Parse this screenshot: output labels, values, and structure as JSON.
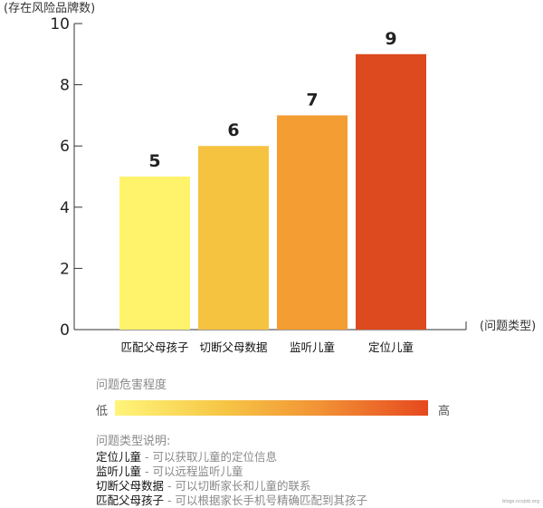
{
  "chart_data": {
    "type": "bar",
    "ylabel": "(存在风险品牌数)",
    "xlabel": "(问题类型)",
    "ylim": [
      0,
      10
    ],
    "yticks": [
      0,
      2,
      4,
      6,
      8,
      10
    ],
    "categories": [
      "匹配父母孩子",
      "切断父母数据",
      "监听儿童",
      "定位儿童"
    ],
    "values": [
      5,
      6,
      7,
      9
    ],
    "colors": [
      "#fff36b",
      "#f6c341",
      "#f39d33",
      "#de4a1f"
    ],
    "grid": false
  },
  "legend": {
    "title": "问题危害程度",
    "low": "低",
    "high": "高"
  },
  "description": {
    "title": "问题类型说明:",
    "items": [
      {
        "name": "定位儿童",
        "text": " - 可以获取儿童的定位信息"
      },
      {
        "name": "监听儿童",
        "text": " - 可以远程监听儿童"
      },
      {
        "name": "切断父母数据",
        "text": " - 可以切断家长和儿童的联系"
      },
      {
        "name": "匹配父母孩子",
        "text": " - 可以根据家长手机号精确匹配到其孩子"
      }
    ]
  },
  "watermark": "blogs.ncsjob.org"
}
